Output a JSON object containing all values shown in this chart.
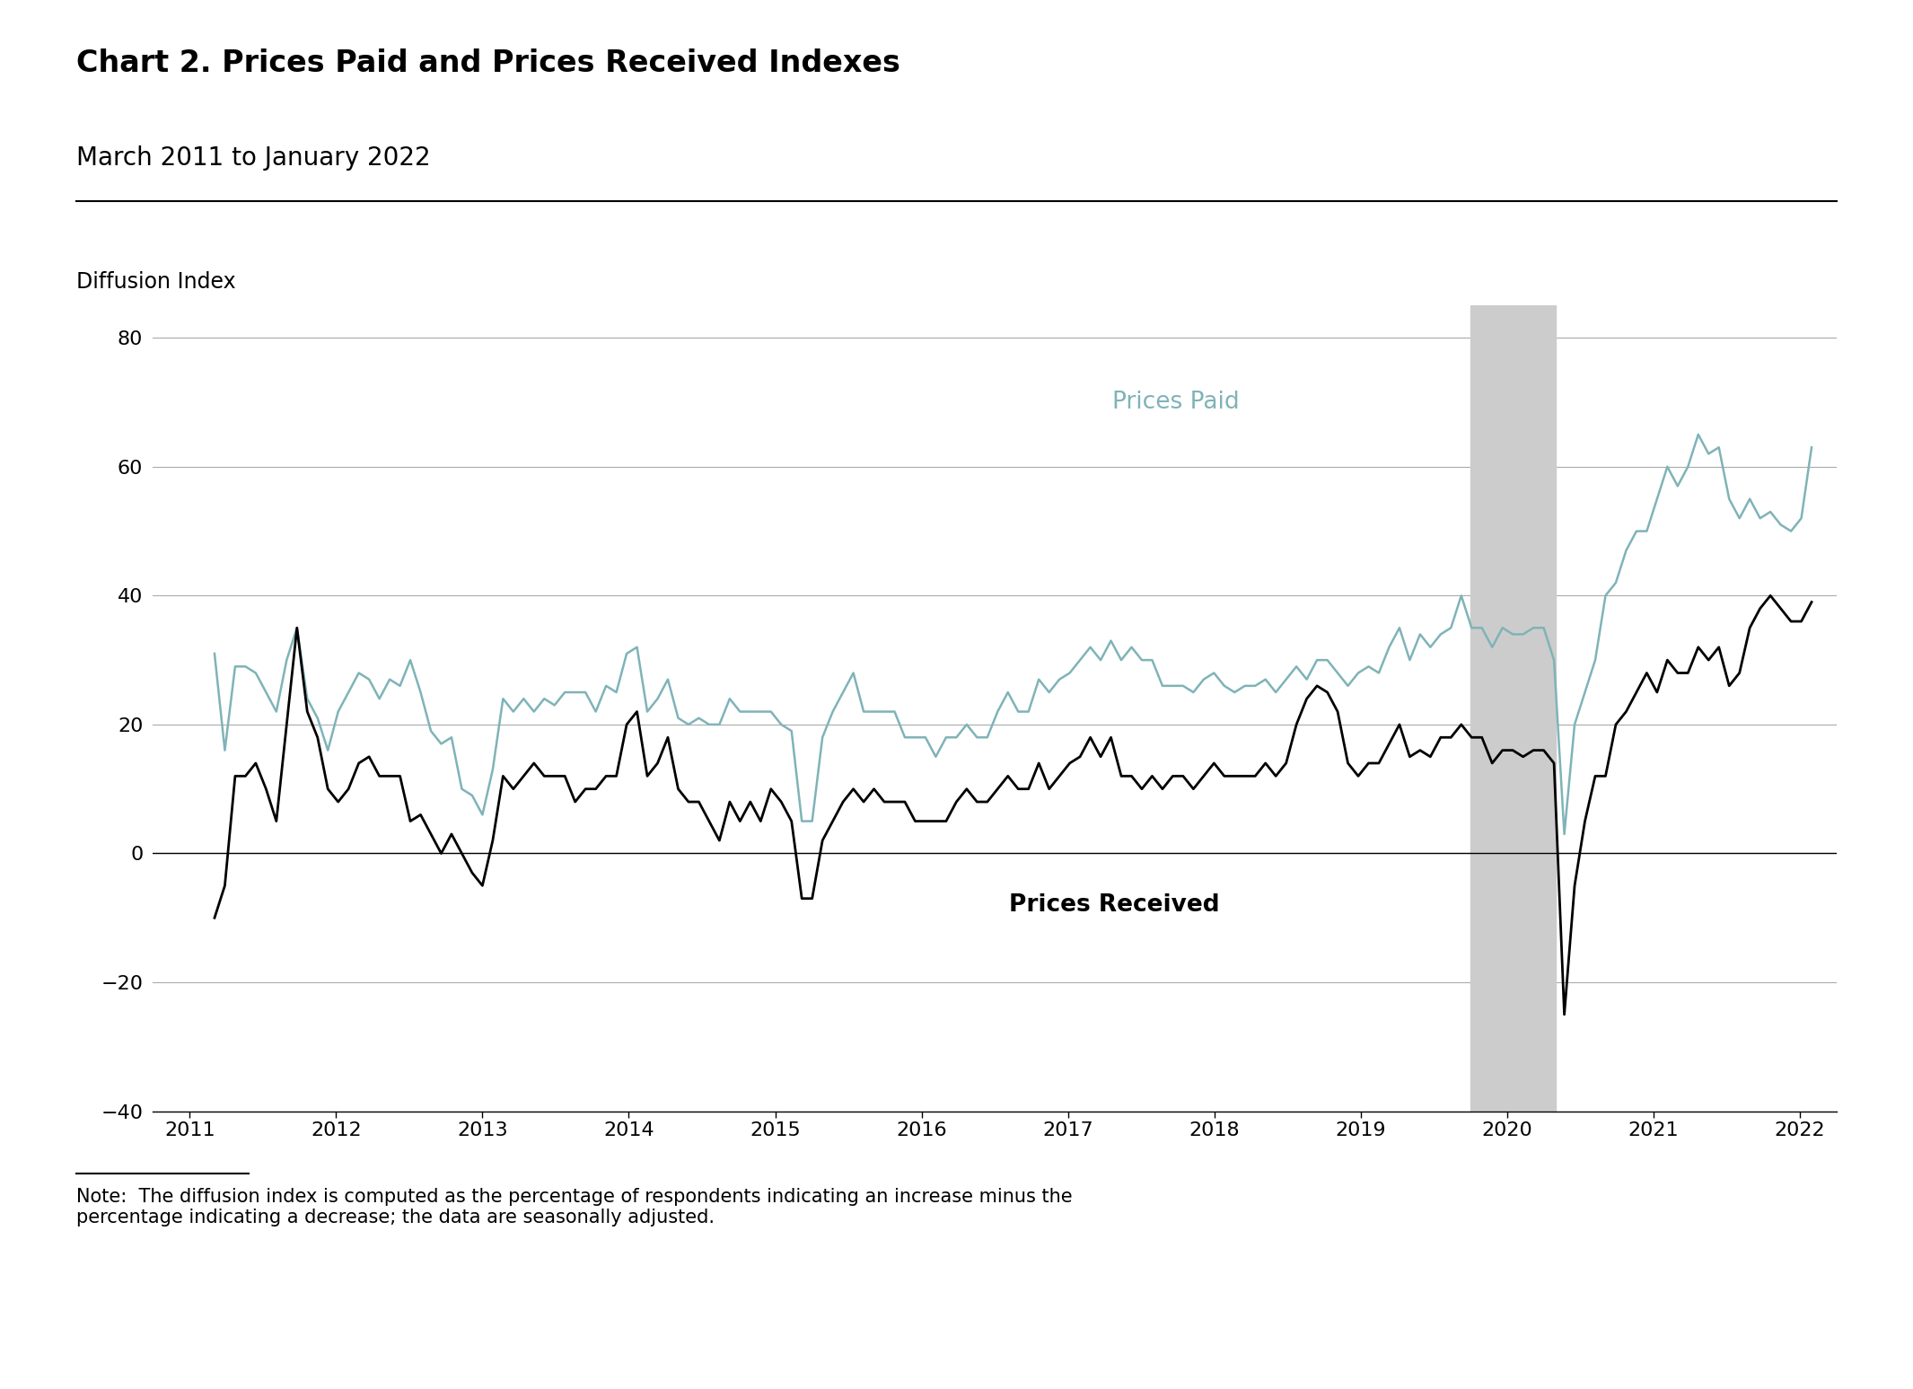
{
  "title": "Chart 2. Prices Paid and Prices Received Indexes",
  "subtitle": "March 2011 to January 2022",
  "ylabel": "Diffusion Index",
  "note": "Note:  The diffusion index is computed as the percentage of respondents indicating an increase minus the\npercentage indicating a decrease; the data are seasonally adjusted.",
  "ylim": [
    -40,
    85
  ],
  "yticks": [
    -40,
    -20,
    0,
    20,
    40,
    60,
    80
  ],
  "recession_start": 2019.75,
  "recession_end": 2020.33,
  "prices_paid_color": "#7fb3b8",
  "prices_received_color": "#000000",
  "background_color": "#ffffff",
  "recession_color": "#cccccc",
  "prices_paid_label": "Prices Paid",
  "prices_received_label": "Prices Received",
  "prices_paid": [
    31,
    16,
    29,
    29,
    28,
    25,
    22,
    30,
    35,
    24,
    21,
    16,
    22,
    25,
    28,
    27,
    24,
    27,
    26,
    30,
    25,
    19,
    17,
    18,
    10,
    9,
    6,
    13,
    24,
    22,
    24,
    22,
    24,
    23,
    25,
    25,
    25,
    22,
    26,
    25,
    31,
    32,
    22,
    24,
    27,
    21,
    20,
    21,
    20,
    20,
    24,
    22,
    22,
    22,
    22,
    20,
    19,
    5,
    5,
    18,
    22,
    25,
    28,
    22,
    22,
    22,
    22,
    18,
    18,
    18,
    15,
    18,
    18,
    20,
    18,
    18,
    22,
    25,
    22,
    22,
    27,
    25,
    27,
    28,
    30,
    32,
    30,
    33,
    30,
    32,
    30,
    30,
    26,
    26,
    26,
    25,
    27,
    28,
    26,
    25,
    26,
    26,
    27,
    25,
    27,
    29,
    27,
    30,
    30,
    28,
    26,
    28,
    29,
    28,
    32,
    35,
    30,
    34,
    32,
    34,
    35,
    40,
    35,
    35,
    32,
    35,
    34,
    34,
    35,
    35,
    30,
    3,
    20,
    25,
    30,
    40,
    42,
    47,
    50,
    50,
    55,
    60,
    57,
    60,
    65,
    62,
    63,
    55,
    52,
    55,
    52,
    53,
    51,
    50,
    52,
    63
  ],
  "prices_received": [
    -10,
    -5,
    12,
    12,
    14,
    10,
    5,
    20,
    35,
    22,
    18,
    10,
    8,
    10,
    14,
    15,
    12,
    12,
    12,
    5,
    6,
    3,
    0,
    3,
    0,
    -3,
    -5,
    2,
    12,
    10,
    12,
    14,
    12,
    12,
    12,
    8,
    10,
    10,
    12,
    12,
    20,
    22,
    12,
    14,
    18,
    10,
    8,
    8,
    5,
    2,
    8,
    5,
    8,
    5,
    10,
    8,
    5,
    -7,
    -7,
    2,
    5,
    8,
    10,
    8,
    10,
    8,
    8,
    8,
    5,
    5,
    5,
    5,
    8,
    10,
    8,
    8,
    10,
    12,
    10,
    10,
    14,
    10,
    12,
    14,
    15,
    18,
    15,
    18,
    12,
    12,
    10,
    12,
    10,
    12,
    12,
    10,
    12,
    14,
    12,
    12,
    12,
    12,
    14,
    12,
    14,
    20,
    24,
    26,
    25,
    22,
    14,
    12,
    14,
    14,
    17,
    20,
    15,
    16,
    15,
    18,
    18,
    20,
    18,
    18,
    14,
    16,
    16,
    15,
    16,
    16,
    14,
    -25,
    -5,
    5,
    12,
    12,
    20,
    22,
    25,
    28,
    25,
    30,
    28,
    28,
    32,
    30,
    32,
    26,
    28,
    35,
    38,
    40,
    38,
    36,
    36,
    39
  ],
  "start_year": 2011.17,
  "end_year": 2022.08,
  "xticks_labels": [
    "2011",
    "2012",
    "2013",
    "2014",
    "2015",
    "2016",
    "2017",
    "2018",
    "2019",
    "2020",
    "2021",
    "2022"
  ],
  "xticks_positions": [
    2011,
    2012,
    2013,
    2014,
    2015,
    2016,
    2017,
    2018,
    2019,
    2020,
    2021,
    2022
  ]
}
